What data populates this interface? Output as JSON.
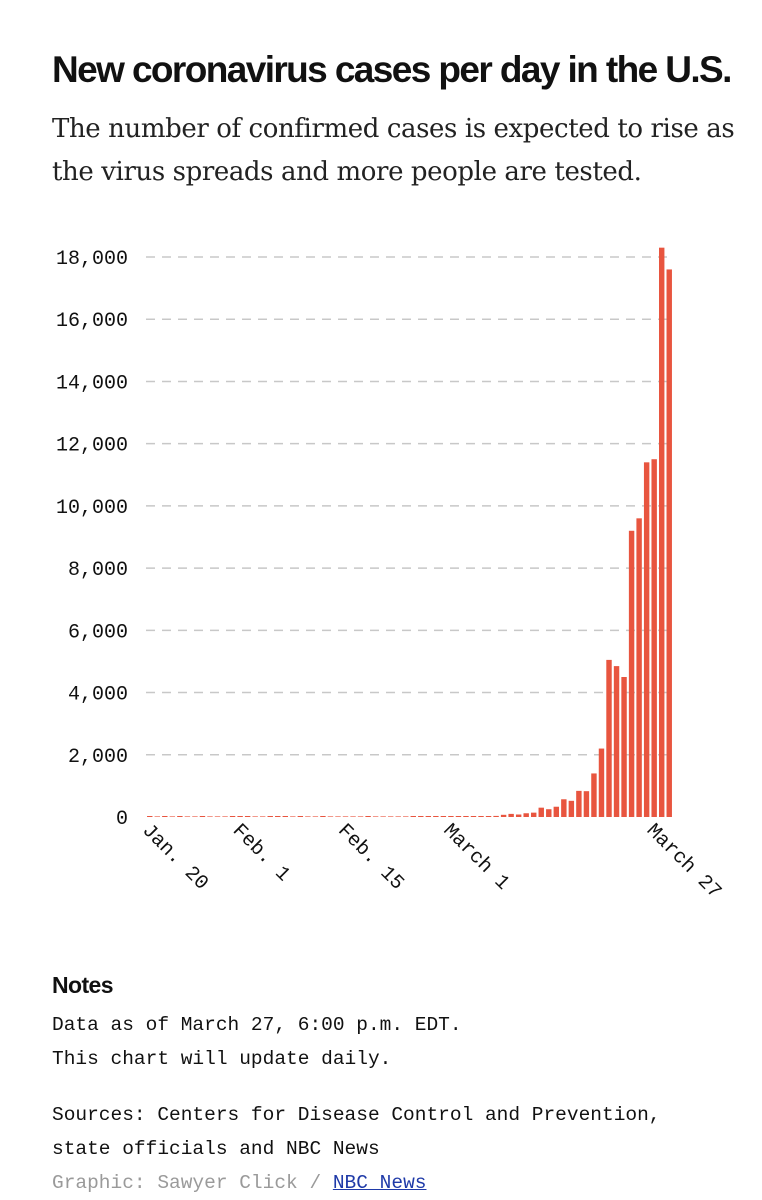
{
  "header": {
    "title": "New coronavirus cases per day in the U.S.",
    "subtitle": "The number of confirmed cases is expected to rise as the virus spreads and more people are tested."
  },
  "chart_data": {
    "type": "bar",
    "title": "New coronavirus cases per day in the U.S.",
    "xlabel": "",
    "ylabel": "",
    "ylim": [
      0,
      18000
    ],
    "grid": true,
    "bar_color": "#e8553f",
    "yticks": [
      0,
      2000,
      4000,
      6000,
      8000,
      10000,
      12000,
      14000,
      16000,
      18000
    ],
    "ytick_labels": [
      "0",
      "2,000",
      "4,000",
      "6,000",
      "8,000",
      "10,000",
      "12,000",
      "14,000",
      "16,000",
      "18,000"
    ],
    "xtick_labels": [
      {
        "index": 0,
        "label": "Jan. 20"
      },
      {
        "index": 12,
        "label": "Feb. 1"
      },
      {
        "index": 26,
        "label": "Feb. 15"
      },
      {
        "index": 40,
        "label": "March 1"
      },
      {
        "index": 67,
        "label": "March 27"
      }
    ],
    "values": [
      1,
      0,
      1,
      0,
      1,
      0,
      0,
      1,
      0,
      0,
      0,
      2,
      1,
      1,
      0,
      0,
      1,
      1,
      1,
      0,
      1,
      0,
      0,
      1,
      0,
      0,
      0,
      0,
      0,
      1,
      0,
      0,
      0,
      0,
      0,
      2,
      15,
      10,
      11,
      8,
      12,
      16,
      18,
      20,
      30,
      25,
      35,
      70,
      100,
      80,
      120,
      140,
      300,
      250,
      330,
      570,
      520,
      840,
      830,
      1400,
      2200,
      5050,
      4850,
      4500,
      9200,
      9600,
      11400,
      11500,
      18300,
      17600
    ]
  },
  "notes": {
    "title": "Notes",
    "line1": "Data as of March 27, 6:00 p.m. EDT.",
    "line2": "This chart will update daily."
  },
  "sources": {
    "line1": "Sources: Centers for Disease Control and Prevention,",
    "line2": "state officials and NBC News"
  },
  "credit": {
    "prefix": "Graphic: Sawyer Click /",
    "link": "NBC News"
  }
}
